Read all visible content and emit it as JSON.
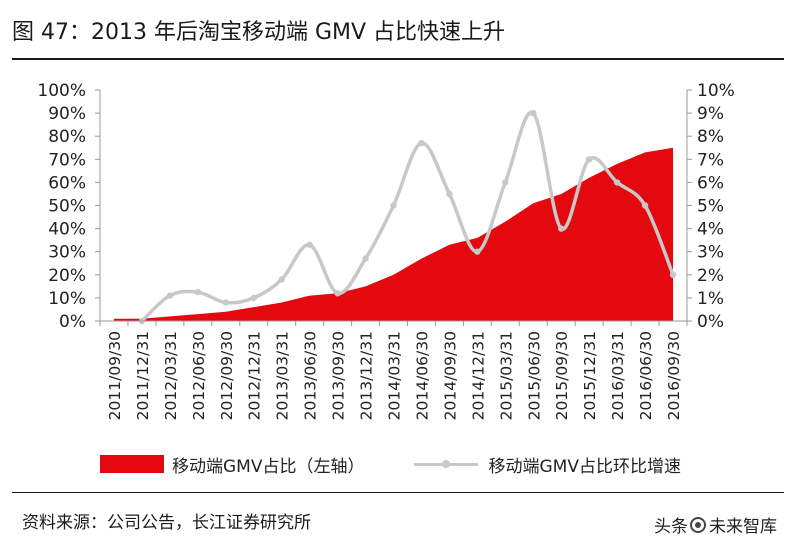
{
  "figure": {
    "title": "图 47：2013 年后淘宝移动端 GMV 占比快速上升",
    "source": "资料来源：公司公告，长江证券研究所",
    "watermark_prefix": "头条",
    "watermark_name": "未来智库"
  },
  "colors": {
    "area_fill": "#e3090f",
    "line_stroke": "#c8c8c8",
    "axis": "#999999"
  },
  "chart_data": {
    "type": "area",
    "categories": [
      "2011/09/30",
      "2011/12/31",
      "2012/03/31",
      "2012/06/30",
      "2012/09/30",
      "2012/12/31",
      "2013/03/31",
      "2013/06/30",
      "2013/09/30",
      "2013/12/31",
      "2014/03/31",
      "2014/06/30",
      "2014/09/30",
      "2014/12/31",
      "2015/03/31",
      "2015/06/30",
      "2015/09/30",
      "2015/12/31",
      "2016/03/31",
      "2016/06/30",
      "2016/09/30"
    ],
    "series": [
      {
        "name": "移动端GMV占比（左轴）",
        "type": "area",
        "axis": "left",
        "values": [
          1,
          1,
          2,
          3,
          4,
          6,
          8,
          11,
          12,
          15,
          20,
          27,
          33,
          36,
          43,
          51,
          55,
          62,
          68,
          73,
          75
        ]
      },
      {
        "name": "移动端GMV占比环比增速",
        "type": "line",
        "axis": "right",
        "values": [
          null,
          0.0,
          1.1,
          1.25,
          0.8,
          1.0,
          1.8,
          3.3,
          1.2,
          2.7,
          5.0,
          7.7,
          5.5,
          3.0,
          6.0,
          9.0,
          4.0,
          7.0,
          6.0,
          5.0,
          2.0
        ]
      }
    ],
    "y_left": {
      "ylim": [
        0,
        100
      ],
      "ticks": [
        "0%",
        "10%",
        "20%",
        "30%",
        "40%",
        "50%",
        "60%",
        "70%",
        "80%",
        "90%",
        "100%"
      ]
    },
    "y_right": {
      "ylim": [
        0,
        10
      ],
      "ticks": [
        "0%",
        "1%",
        "2%",
        "3%",
        "4%",
        "5%",
        "6%",
        "7%",
        "8%",
        "9%",
        "10%"
      ]
    },
    "grid": false,
    "legend_position": "bottom"
  }
}
